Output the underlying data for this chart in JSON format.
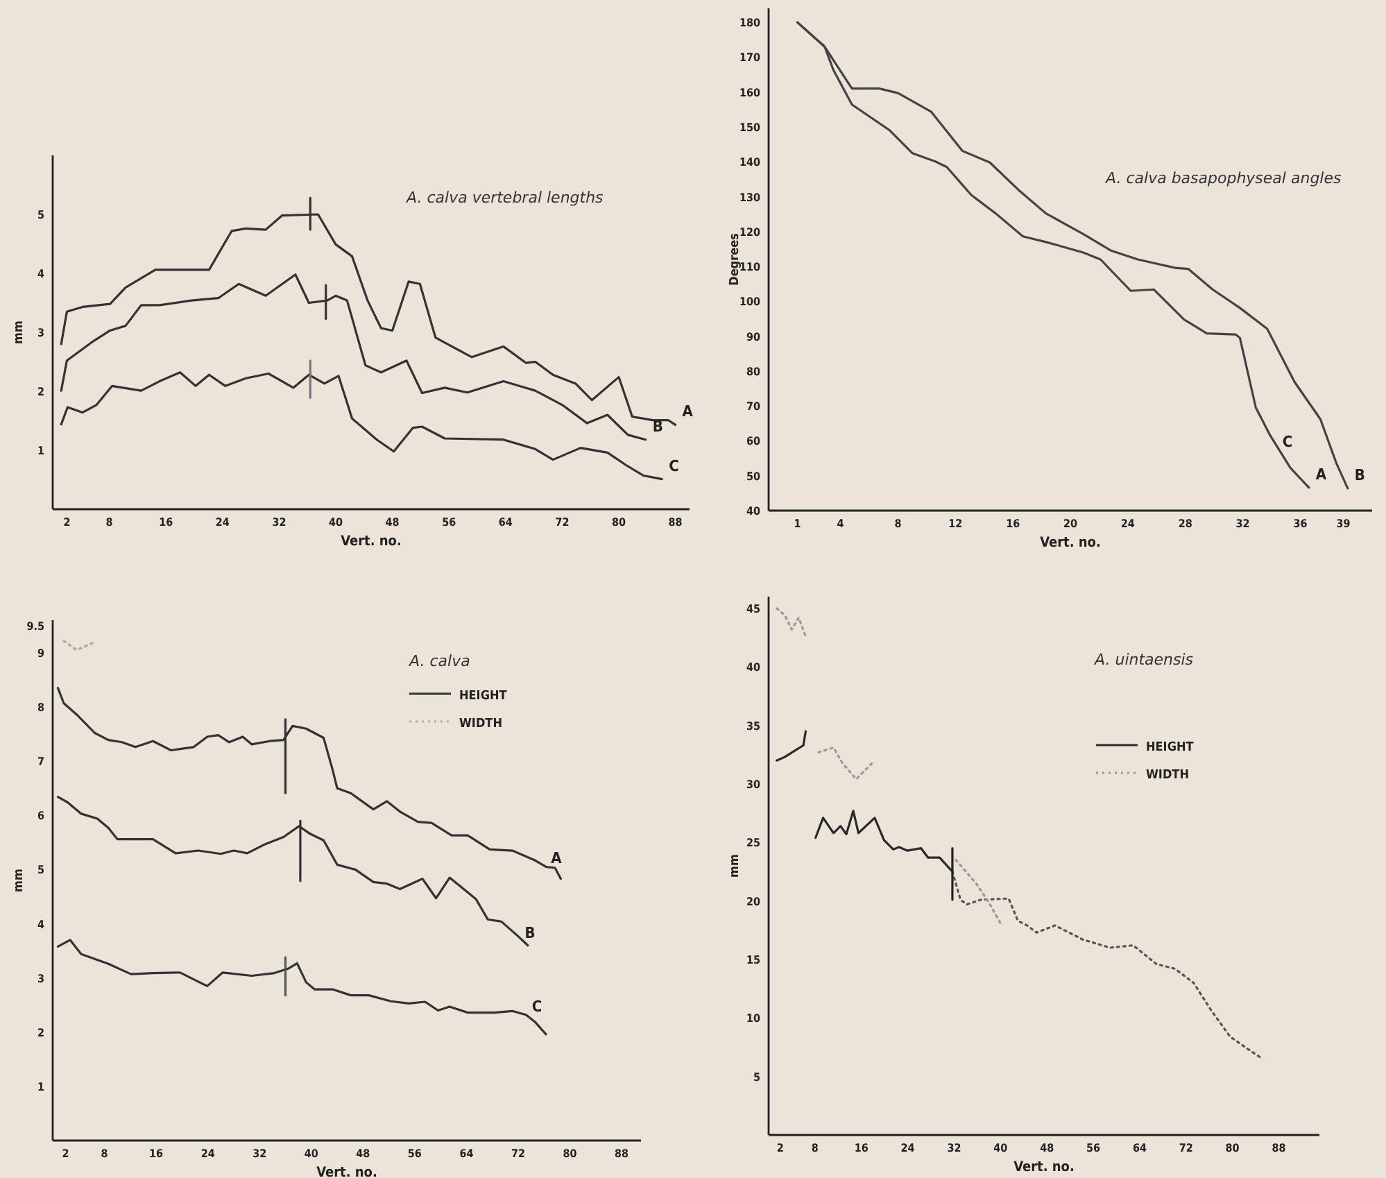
{
  "chart_data": [
    {
      "type": "line",
      "title": "A. calva vertebral lengths",
      "xlabel": "Vert. no.",
      "ylabel": "mm",
      "xlim": [
        0,
        90
      ],
      "ylim": [
        0,
        6
      ],
      "xticks": [
        2,
        8,
        16,
        24,
        32,
        40,
        48,
        56,
        64,
        72,
        80,
        88
      ],
      "yticks": [
        1,
        2,
        3,
        4,
        5
      ],
      "line_style": "solid",
      "series": [
        {
          "name": "A",
          "color": "#333333",
          "x": [
            1.2,
            2,
            4.2,
            8.1,
            10.3,
            14.5,
            22.1,
            25.3,
            27.3,
            30.1,
            32.4,
            37.5,
            40,
            42.3,
            44.5,
            46.4,
            48,
            50.3,
            51.9,
            54.1,
            59.2,
            63.7,
            66.9,
            68.2,
            70.7,
            73.9,
            76.2,
            80,
            81.9,
            84.8,
            87,
            88
          ],
          "values": [
            2.8,
            3.35,
            3.43,
            3.48,
            3.76,
            4.06,
            4.06,
            4.72,
            4.76,
            4.74,
            4.98,
            5.0,
            4.49,
            4.29,
            3.54,
            3.07,
            3.03,
            3.86,
            3.82,
            2.91,
            2.58,
            2.76,
            2.48,
            2.5,
            2.28,
            2.13,
            1.85,
            2.24,
            1.57,
            1.51,
            1.51,
            1.43
          ]
        },
        {
          "name": "B",
          "color": "#333333",
          "x": [
            1.2,
            2,
            5.5,
            8.1,
            10.3,
            12.5,
            15.1,
            19.6,
            23.4,
            26.3,
            30.1,
            34.3,
            36.2,
            38.8,
            40,
            41.6,
            44.2,
            46.4,
            50,
            52.2,
            55.4,
            58.6,
            63.7,
            68.2,
            72,
            75.5,
            78.4,
            81.3,
            83.8
          ],
          "values": [
            2.01,
            2.52,
            2.83,
            3.03,
            3.11,
            3.46,
            3.46,
            3.54,
            3.58,
            3.82,
            3.62,
            3.98,
            3.5,
            3.54,
            3.62,
            3.54,
            2.44,
            2.32,
            2.52,
            1.97,
            2.06,
            1.98,
            2.17,
            2.01,
            1.77,
            1.46,
            1.6,
            1.26,
            1.18
          ]
        },
        {
          "name": "C",
          "color": "#333333",
          "x": [
            1.2,
            2.1,
            4.2,
            6.2,
            8.4,
            12.5,
            15.1,
            18,
            20.2,
            22.1,
            24.4,
            27.3,
            30.5,
            34,
            36.2,
            38.4,
            40.4,
            42.3,
            45.8,
            48.2,
            50.9,
            52.2,
            55.4,
            63.7,
            68.2,
            70.7,
            74.6,
            78.4,
            81,
            83.5,
            86.1
          ],
          "values": [
            1.44,
            1.73,
            1.64,
            1.77,
            2.09,
            2.01,
            2.17,
            2.32,
            2.09,
            2.28,
            2.09,
            2.22,
            2.3,
            2.06,
            2.28,
            2.13,
            2.26,
            1.54,
            1.18,
            0.98,
            1.38,
            1.4,
            1.2,
            1.18,
            1.02,
            0.84,
            1.04,
            0.96,
            0.75,
            0.57,
            0.51
          ]
        },
        {
          "color": "#333333",
          "x": [
            36.4,
            36.4
          ],
          "values": [
            4.74,
            5.28
          ]
        },
        {
          "color": "#333333",
          "x": [
            38.6,
            38.6
          ],
          "values": [
            3.23,
            3.8
          ]
        },
        {
          "color": "#777777",
          "x": [
            36.4,
            36.4
          ],
          "values": [
            1.89,
            2.52
          ]
        }
      ]
    },
    {
      "type": "line",
      "title": "A. calva basapophyseal angles",
      "xlabel": "Vert. no.",
      "ylabel": "Degrees",
      "xlim": [
        -1,
        41
      ],
      "ylim": [
        40,
        184
      ],
      "xticks": [
        1,
        4,
        8,
        12,
        16,
        20,
        24,
        28,
        32,
        36,
        39
      ],
      "yticks": [
        40,
        50,
        60,
        70,
        80,
        90,
        100,
        110,
        120,
        130,
        140,
        150,
        160,
        170,
        180
      ],
      "line_style": "solid",
      "annotations": [
        "C"
      ],
      "series": [
        {
          "name": "A",
          "color": "#444444",
          "x": [
            1,
            2.9,
            3.5,
            4.8,
            7.4,
            9,
            10.6,
            11.4,
            13.1,
            14.8,
            16.7,
            18.3,
            20.9,
            22.1,
            24.2,
            25.8,
            27.9,
            29.5,
            31.5,
            31.8,
            32.9,
            33.9,
            35.3,
            36.6
          ],
          "values": [
            180,
            173,
            166.4,
            156.4,
            149.1,
            142.5,
            140.1,
            138.5,
            130.5,
            125.2,
            118.6,
            117,
            114,
            112,
            103,
            103.4,
            94.8,
            90.8,
            90.5,
            89.5,
            69.6,
            61.6,
            52.3,
            46.6
          ]
        },
        {
          "name": "B",
          "color": "#444444",
          "x": [
            1,
            2.9,
            4.8,
            6.7,
            8,
            10.3,
            12.5,
            14.4,
            16.4,
            18.3,
            20.9,
            22.8,
            24.7,
            27.3,
            28.2,
            29.9,
            31.8,
            33.7,
            35.6,
            37.4,
            38.5,
            39.3
          ],
          "values": [
            180,
            173,
            161,
            161,
            159.7,
            154.4,
            143.1,
            139.8,
            131.9,
            125.2,
            119.3,
            114.6,
            112,
            109.6,
            109.3,
            103.4,
            98.1,
            92.1,
            76.9,
            66.2,
            53.7,
            46.4
          ]
        }
      ]
    },
    {
      "type": "line",
      "title": "A. calva",
      "xlabel": "Vert. no.",
      "ylabel": "mm",
      "xlim": [
        0,
        91
      ],
      "ylim": [
        0,
        9.6
      ],
      "xticks": [
        2,
        8,
        16,
        24,
        32,
        40,
        48,
        56,
        64,
        72,
        80,
        88
      ],
      "yticks": [
        1,
        2,
        3,
        4,
        5,
        6,
        7,
        8,
        9,
        9.5
      ],
      "legend": "top right",
      "annotations": [
        "A",
        "B",
        "C"
      ],
      "series": [
        {
          "name": "HEIGHT",
          "color": "#333333",
          "line_style": "solid",
          "x": [
            0.8,
            1.7,
            3.7,
            6.5,
            8.6,
            10.7,
            12.8,
            15.5,
            18.3,
            21.8,
            23.9,
            25.6,
            27.3,
            29.4,
            30.8,
            33.6,
            35.7,
            37.1,
            39.2,
            41.9,
            43.3,
            44,
            46.1,
            49.6,
            51.7,
            53.7,
            56.5,
            58.6,
            61.7,
            64.2,
            67.6,
            71.1,
            74.6,
            76.3,
            77.7,
            78.6
          ],
          "values": [
            8.35,
            8.07,
            7.86,
            7.52,
            7.39,
            7.35,
            7.26,
            7.37,
            7.2,
            7.26,
            7.45,
            7.48,
            7.35,
            7.45,
            7.31,
            7.37,
            7.39,
            7.65,
            7.6,
            7.43,
            6.84,
            6.5,
            6.41,
            6.11,
            6.26,
            6.07,
            5.88,
            5.86,
            5.63,
            5.63,
            5.37,
            5.35,
            5.17,
            5.05,
            5.03,
            4.83
          ]
        },
        {
          "color": "#333333",
          "line_style": "solid",
          "x": [
            0.8,
            2.3,
            4.4,
            6.9,
            8.6,
            10,
            15.5,
            19,
            22.5,
            26,
            28,
            30.1,
            32.9,
            35.7,
            38.1,
            39.8,
            41.9,
            44,
            46.8,
            49.6,
            51.7,
            53.7,
            57.2,
            59.3,
            61.4,
            64.2,
            65.5,
            67.3,
            69.4,
            71.8,
            73.5
          ],
          "values": [
            6.34,
            6.24,
            6.03,
            5.94,
            5.77,
            5.56,
            5.56,
            5.3,
            5.35,
            5.29,
            5.35,
            5.3,
            5.47,
            5.6,
            5.8,
            5.66,
            5.54,
            5.09,
            5.0,
            4.77,
            4.74,
            4.64,
            4.83,
            4.47,
            4.85,
            4.58,
            4.45,
            4.08,
            4.04,
            3.79,
            3.6
          ]
        },
        {
          "color": "#333333",
          "line_style": "solid",
          "x": [
            0.8,
            2.7,
            4.4,
            8.6,
            12.1,
            15.5,
            19.7,
            23.9,
            26.3,
            30.8,
            34.3,
            36.4,
            37.8,
            39.2,
            40.5,
            43.3,
            46.1,
            48.9,
            52.3,
            55.1,
            57.6,
            59.6,
            61.4,
            64.2,
            68.3,
            71.1,
            73.2,
            74.6,
            76.3
          ],
          "values": [
            3.58,
            3.7,
            3.44,
            3.26,
            3.07,
            3.09,
            3.1,
            2.85,
            3.1,
            3.04,
            3.09,
            3.17,
            3.27,
            2.92,
            2.79,
            2.79,
            2.68,
            2.68,
            2.57,
            2.53,
            2.56,
            2.4,
            2.47,
            2.36,
            2.36,
            2.39,
            2.32,
            2.19,
            1.96
          ]
        },
        {
          "name": "WIDTH",
          "color": "#aaaaaa",
          "line_style": "dotted",
          "x": [
            1.7,
            3.7,
            6.2
          ],
          "values": [
            9.22,
            9.05,
            9.18
          ]
        },
        {
          "color": "#333333",
          "line_style": "solid",
          "x": [
            36,
            36
          ],
          "values": [
            6.41,
            7.77
          ]
        },
        {
          "color": "#333333",
          "line_style": "solid",
          "x": [
            38.3,
            38.3
          ],
          "values": [
            4.79,
            5.9
          ]
        },
        {
          "color": "#555555",
          "line_style": "solid",
          "x": [
            36,
            36
          ],
          "values": [
            2.68,
            3.38
          ]
        }
      ]
    },
    {
      "type": "line",
      "title": "A. uintaensis",
      "xlabel": "Vert. no.",
      "ylabel": "mm",
      "xlim": [
        0,
        95
      ],
      "ylim": [
        0,
        46
      ],
      "xticks": [
        2,
        8,
        16,
        24,
        32,
        40,
        48,
        56,
        64,
        72,
        80,
        88
      ],
      "yticks": [
        5,
        10,
        15,
        20,
        25,
        30,
        35,
        40,
        45
      ],
      "legend": "top right",
      "series": [
        {
          "name": "HEIGHT",
          "color": "#2a2a2a",
          "line_style": "solid",
          "x": [
            1.4,
            2.8,
            4.4,
            6,
            6.4,
            7.3,
            8.1,
            9.4,
            11.2,
            12.4,
            13.4,
            14.6,
            15.5,
            18.3,
            19.9,
            21.5,
            22.5,
            23.9,
            26.3,
            27.5,
            29.5,
            31.7
          ],
          "values": [
            32,
            32.3,
            32.8,
            33.3,
            34.5,
            null,
            25.4,
            27.1,
            25.8,
            26.4,
            25.7,
            27.7,
            25.8,
            27.1,
            25.2,
            24.4,
            24.6,
            24.3,
            24.5,
            23.7,
            23.7,
            22.5
          ]
        },
        {
          "color": "#555555",
          "line_style": "dotted",
          "x": [
            31.7,
            33.1,
            34.2,
            36.6,
            41.4,
            43,
            44.6,
            46.2,
            49.4,
            54.2,
            58.9,
            62.9,
            66.9,
            70.1,
            73.3,
            76.4,
            79.6,
            82.8,
            85.2
          ],
          "values": [
            22.5,
            20.1,
            19.7,
            20.1,
            20.2,
            18.3,
            17.9,
            17.3,
            17.9,
            16.7,
            16,
            16.2,
            14.6,
            14.2,
            13,
            10.6,
            8.4,
            7.3,
            6.5
          ]
        },
        {
          "name": "WIDTH",
          "color": "#999999",
          "line_style": "dotted",
          "x": [
            1.4,
            2.8,
            4,
            5.2,
            6.4,
            7.5,
            8.6,
            11.2,
            12.7,
            15.1,
            17.9,
            25,
            32.3,
            35.8,
            38.2,
            40.2
          ],
          "values": [
            45,
            44.4,
            43.2,
            44.2,
            42.6,
            null,
            32.7,
            33.1,
            31.8,
            30.4,
            31.8,
            null,
            23.5,
            21.5,
            19.7,
            17.9
          ]
        },
        {
          "color": "#222222",
          "line_style": "solid",
          "x": [
            31.7,
            31.7
          ],
          "values": [
            20.1,
            24.5
          ]
        }
      ]
    }
  ]
}
